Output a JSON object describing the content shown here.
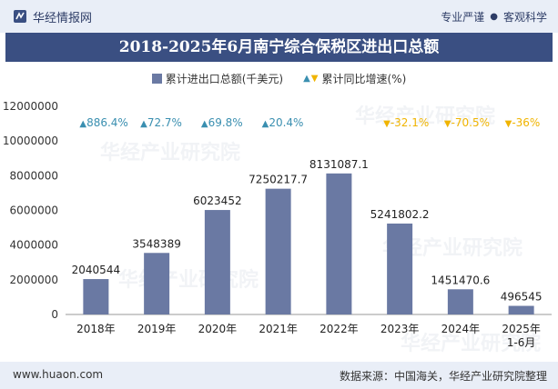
{
  "header": {
    "brand": "华经情报网",
    "logo_icon": "huajing-logo-icon",
    "tagline_left": "专业严谨",
    "tagline_sep": "●",
    "tagline_right": "客观科学"
  },
  "watermark": "华经产业研究院",
  "footer": {
    "website": "www.huaon.com",
    "source": "数据来源：中国海关，华经产业研究院整理"
  },
  "colors": {
    "bar": "#6a79a3",
    "up": "#3a8fb0",
    "down": "#f0b400",
    "title_bg": "#3a4f82",
    "header_bg": "#e9eef7"
  },
  "chart_data": {
    "type": "bar",
    "title": "2018-2025年6月南宁综合保税区进出口总额",
    "categories": [
      "2018年",
      "2019年",
      "2020年",
      "2021年",
      "2022年",
      "2023年",
      "2024年",
      "2025年\n1-6月"
    ],
    "series": [
      {
        "name": "累计进出口总额(千美元)",
        "values": [
          2040544,
          3548389,
          6023452,
          7250217.7,
          8131087.1,
          5241802.2,
          1451470.6,
          496545
        ],
        "labels": [
          "2040544",
          "3548389",
          "6023452",
          "7250217.7",
          "8131087.1",
          "5241802.2",
          "1451470.6",
          "496545"
        ]
      },
      {
        "name": "累计同比增速(%)",
        "values": [
          886.4,
          72.7,
          69.8,
          20.4,
          null,
          -32.1,
          -70.5,
          -36
        ],
        "labels": [
          "886.4%",
          "72.7%",
          "69.8%",
          "20.4%",
          "",
          "-32.1%",
          "-70.5%",
          "-36%"
        ]
      }
    ],
    "yticks": [
      "12000000",
      "10000000",
      "8000000",
      "6000000",
      "4000000",
      "2000000",
      "0"
    ],
    "ylim": [
      0,
      12000000
    ],
    "grid": false,
    "legend_position": "top-center"
  }
}
